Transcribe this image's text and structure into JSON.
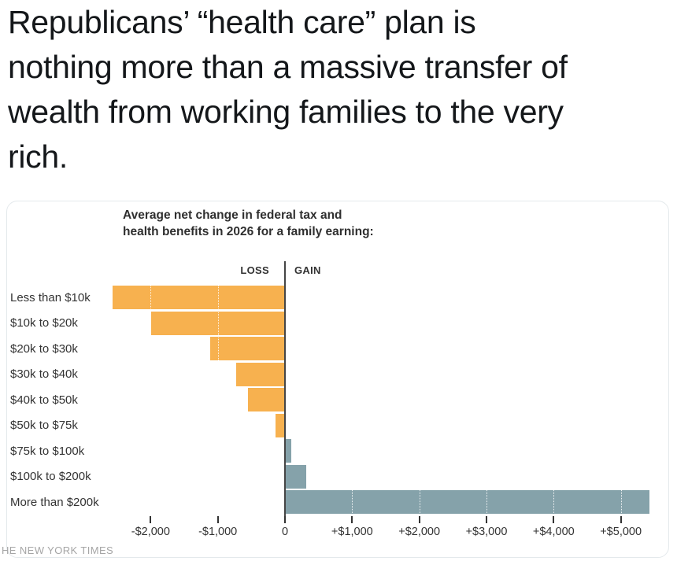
{
  "headline": {
    "lines": [
      "Republicans’ “health care” plan is",
      "nothing more than a massive transfer of",
      "wealth from working families to the very",
      "rich."
    ]
  },
  "chart_card": {
    "title_lines": [
      "Average net change in federal tax and",
      "health benefits in 2026 for a family earning:"
    ],
    "attribution": "HE NEW YORK TIMES"
  },
  "chart_data": {
    "type": "bar",
    "orientation": "horizontal",
    "title": "Average net change in federal tax and health benefits in 2026 for a family earning:",
    "categories": [
      "Less than $10k",
      "$10k to $20k",
      "$20k to $30k",
      "$30k to $40k",
      "$40k to $50k",
      "$50k to $75k",
      "$75k to $100k",
      "$100k to $200k",
      "More than $200k"
    ],
    "values": [
      -2550,
      -1980,
      -1100,
      -720,
      -540,
      -130,
      80,
      310,
      5420
    ],
    "loss_label": "LOSS",
    "gain_label": "GAIN",
    "x_tick_values": [
      -2000,
      -1000,
      0,
      1000,
      2000,
      3000,
      4000,
      5000
    ],
    "x_tick_labels": [
      "-$2,000",
      "-$1,000",
      "0",
      "+$1,000",
      "+$2,000",
      "+$3,000",
      "+$4,000",
      "+$5,000"
    ],
    "xlim": [
      -2550,
      5420
    ],
    "loss_color": "#f7b14f",
    "gain_color": "#85a2aa",
    "axis_line_color": "#454545",
    "grid": "white-dotted-over-bars",
    "legend_position": "none"
  }
}
